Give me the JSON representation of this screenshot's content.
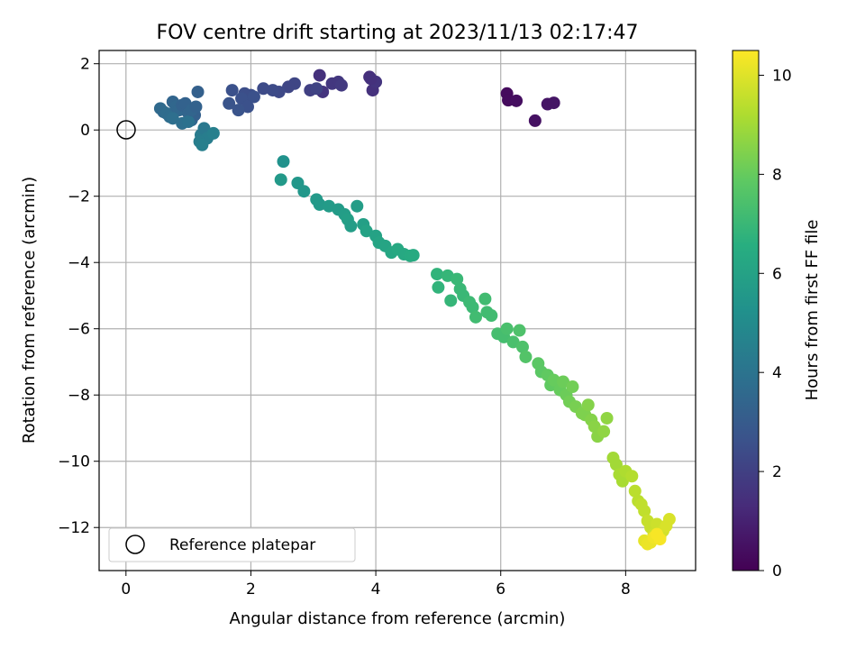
{
  "chart_data": {
    "type": "scatter",
    "title": "FOV centre drift starting at 2023/11/13 02:17:47",
    "xlabel": "Angular distance from reference (arcmin)",
    "ylabel": "Rotation from reference (arcmin)",
    "xlim": [
      -0.43,
      9.12
    ],
    "ylim": [
      -13.3,
      2.4
    ],
    "xticks": [
      0,
      2,
      4,
      6,
      8
    ],
    "yticks": [
      -12,
      -10,
      -8,
      -6,
      -4,
      -2,
      0,
      2
    ],
    "grid": true,
    "legend": {
      "placement": "lower-left",
      "entries": [
        "Reference platepar"
      ]
    },
    "reference_point": {
      "x": 0,
      "y": 0
    },
    "colorbar": {
      "label": "Hours from first FF file",
      "colormap": "viridis",
      "range": [
        0,
        10.5
      ],
      "ticks": [
        0,
        2,
        4,
        6,
        8,
        10
      ]
    },
    "series": [
      {
        "x": [
          6.1,
          6.12,
          6.25,
          6.55,
          6.75,
          6.85,
          3.1,
          3.15,
          3.3,
          3.4,
          3.45,
          3.9,
          3.95,
          4.0,
          3.92,
          2.95,
          3.05,
          2.7,
          2.6,
          2.45,
          2.35,
          2.2,
          2.0,
          1.9,
          1.85,
          1.7,
          1.65,
          1.95,
          1.8,
          2.05,
          0.55,
          0.6,
          0.65,
          0.7,
          0.75,
          0.8,
          0.85,
          0.9,
          0.95,
          1.0,
          1.05,
          1.1,
          1.15,
          0.75,
          0.9,
          1.0,
          1.05,
          1.12,
          1.2,
          1.25,
          1.3,
          1.4,
          1.18,
          1.22,
          2.48,
          2.52,
          2.75,
          2.85,
          3.05,
          3.1,
          3.25,
          3.4,
          3.5,
          3.55,
          3.6,
          3.7,
          3.8,
          3.85,
          4.0,
          4.05,
          4.15,
          4.25,
          4.35,
          4.45,
          4.55,
          4.6,
          4.98,
          5.0,
          5.15,
          5.2,
          5.3,
          5.35,
          5.4,
          5.5,
          5.55,
          5.6,
          5.75,
          5.78,
          5.85,
          5.95,
          6.05,
          6.1,
          6.2,
          6.3,
          6.35,
          6.4,
          6.6,
          6.65,
          6.75,
          6.8,
          6.85,
          6.95,
          7.0,
          7.05,
          7.1,
          7.15,
          7.2,
          7.3,
          7.35,
          7.4,
          7.45,
          7.5,
          7.55,
          7.65,
          7.7,
          7.8,
          7.85,
          7.9,
          7.95,
          8.0,
          8.1,
          8.15,
          8.2,
          8.25,
          8.3,
          8.35,
          8.4,
          8.45,
          8.5,
          8.55,
          8.6,
          8.65,
          8.7,
          8.3,
          8.35,
          8.4,
          8.45,
          8.5,
          8.55
        ],
        "y": [
          1.1,
          0.9,
          0.88,
          0.28,
          0.78,
          0.82,
          1.65,
          1.15,
          1.4,
          1.45,
          1.35,
          1.6,
          1.2,
          1.45,
          1.55,
          1.2,
          1.25,
          1.4,
          1.3,
          1.15,
          1.2,
          1.25,
          1.05,
          1.1,
          0.95,
          1.2,
          0.8,
          0.7,
          0.6,
          1.0,
          0.65,
          0.55,
          0.5,
          0.4,
          0.85,
          0.7,
          0.6,
          0.75,
          0.8,
          0.5,
          0.3,
          0.45,
          1.15,
          0.35,
          0.2,
          0.25,
          0.6,
          0.7,
          -0.15,
          0.05,
          -0.25,
          -0.1,
          -0.35,
          -0.45,
          -1.5,
          -0.95,
          -1.6,
          -1.85,
          -2.1,
          -2.25,
          -2.3,
          -2.4,
          -2.55,
          -2.7,
          -2.9,
          -2.3,
          -2.85,
          -3.05,
          -3.2,
          -3.4,
          -3.5,
          -3.7,
          -3.6,
          -3.75,
          -3.8,
          -3.78,
          -4.35,
          -4.75,
          -4.4,
          -5.15,
          -4.5,
          -4.8,
          -5.0,
          -5.2,
          -5.35,
          -5.65,
          -5.1,
          -5.5,
          -5.6,
          -6.15,
          -6.25,
          -6.0,
          -6.4,
          -6.05,
          -6.55,
          -6.85,
          -7.05,
          -7.3,
          -7.4,
          -7.7,
          -7.55,
          -7.85,
          -7.6,
          -8.0,
          -8.2,
          -7.75,
          -8.35,
          -8.55,
          -8.6,
          -8.3,
          -8.75,
          -8.95,
          -9.25,
          -9.1,
          -8.7,
          -9.9,
          -10.1,
          -10.4,
          -10.6,
          -10.3,
          -10.45,
          -10.9,
          -11.2,
          -11.3,
          -11.5,
          -11.8,
          -12.0,
          -12.2,
          -11.9,
          -12.3,
          -12.1,
          -11.95,
          -11.75,
          -12.4,
          -12.5,
          -12.45,
          -12.3,
          -12.2,
          -12.35
        ],
        "hours": [
          0.3,
          0.3,
          0.4,
          0.5,
          0.6,
          0.6,
          1.5,
          1.6,
          1.7,
          1.7,
          1.8,
          1.4,
          1.5,
          1.6,
          1.5,
          2.0,
          2.1,
          2.2,
          2.2,
          2.3,
          2.4,
          2.4,
          2.5,
          2.5,
          2.6,
          2.6,
          2.7,
          2.6,
          2.7,
          2.6,
          3.6,
          3.6,
          3.7,
          3.7,
          3.4,
          3.5,
          3.5,
          3.3,
          3.3,
          3.4,
          3.5,
          3.2,
          3.2,
          3.8,
          3.8,
          3.9,
          3.4,
          3.3,
          4.3,
          4.2,
          4.4,
          4.5,
          4.4,
          4.5,
          5.6,
          5.3,
          5.5,
          5.5,
          5.6,
          5.6,
          5.7,
          5.7,
          5.8,
          5.9,
          5.8,
          5.8,
          5.9,
          6.0,
          6.0,
          6.1,
          6.1,
          6.2,
          6.3,
          6.3,
          6.4,
          6.4,
          6.8,
          6.8,
          6.9,
          6.9,
          7.0,
          7.0,
          7.0,
          7.1,
          7.1,
          7.2,
          7.2,
          7.2,
          7.2,
          7.3,
          7.3,
          7.4,
          7.4,
          7.5,
          7.5,
          7.6,
          7.8,
          7.8,
          7.9,
          7.9,
          8.0,
          8.0,
          8.1,
          8.1,
          8.2,
          8.2,
          8.3,
          8.4,
          8.4,
          8.5,
          8.5,
          8.6,
          8.6,
          8.7,
          8.7,
          9.0,
          9.0,
          9.1,
          9.1,
          9.2,
          9.3,
          9.4,
          9.4,
          9.5,
          9.5,
          9.6,
          9.6,
          9.7,
          9.7,
          9.8,
          9.8,
          9.9,
          9.9,
          10.1,
          10.2,
          10.2,
          10.3,
          10.4,
          10.4
        ]
      }
    ]
  }
}
